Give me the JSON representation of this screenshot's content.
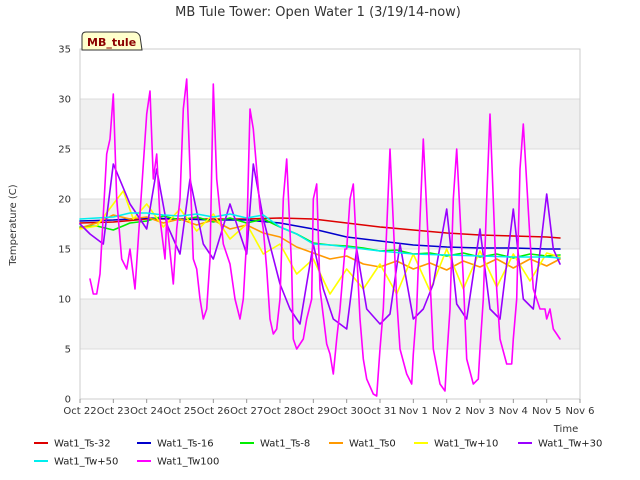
{
  "chart_data": {
    "type": "line",
    "title": "MB Tule Tower: Open Water 1 (3/19/14-now)",
    "xlabel": "Time",
    "ylabel": "Temperature (C)",
    "ylim": [
      0,
      35
    ],
    "xlim": [
      0,
      15
    ],
    "yticks": [
      0,
      5,
      10,
      15,
      20,
      25,
      30,
      35
    ],
    "xticks": [
      "Oct 22",
      "Oct 23",
      "Oct 24",
      "Oct 25",
      "Oct 26",
      "Oct 27",
      "Oct 28",
      "Oct 29",
      "Oct 30",
      "Oct 31",
      "Nov 1",
      "Nov 2",
      "Nov 3",
      "Nov 4",
      "Nov 5",
      "Nov 6"
    ],
    "station_label": "MB_tule",
    "grid": "horizontal bands",
    "legend_position": "bottom",
    "series": [
      {
        "name": "Wat1_Ts-32",
        "color": "#dd0000",
        "x": [
          0,
          1,
          2,
          3,
          4,
          5,
          6,
          7,
          8,
          9,
          10,
          11,
          12,
          13,
          14,
          14.4
        ],
        "y": [
          17.6,
          17.7,
          18.0,
          18.0,
          18.0,
          18.0,
          18.1,
          18.0,
          17.6,
          17.2,
          16.9,
          16.6,
          16.4,
          16.3,
          16.2,
          16.1
        ]
      },
      {
        "name": "Wat1_Ts-16",
        "color": "#0000cc",
        "x": [
          0,
          1,
          2,
          3,
          4,
          5,
          6,
          7,
          8,
          9,
          10,
          11,
          12,
          13,
          14,
          14.4
        ],
        "y": [
          17.8,
          17.9,
          18.1,
          18.0,
          17.9,
          17.9,
          17.6,
          17.0,
          16.2,
          15.8,
          15.4,
          15.2,
          15.1,
          15.1,
          15.0,
          15.0
        ]
      },
      {
        "name": "Wat1_Ts-8",
        "color": "#00ee00",
        "x": [
          0,
          0.5,
          1,
          1.5,
          2,
          2.5,
          3,
          3.5,
          4,
          4.5,
          5,
          5.5,
          6,
          6.5,
          7,
          7.5,
          8,
          8.5,
          9,
          9.5,
          10,
          10.5,
          11,
          11.5,
          12,
          12.5,
          13,
          13.5,
          14,
          14.4
        ],
        "y": [
          17.2,
          17.3,
          16.9,
          17.6,
          17.8,
          18.3,
          17.9,
          18.2,
          17.7,
          18.1,
          17.6,
          18.0,
          17.2,
          16.5,
          15.6,
          15.4,
          15.3,
          15.1,
          14.8,
          14.9,
          14.5,
          14.6,
          14.3,
          14.6,
          14.2,
          14.5,
          14.1,
          14.5,
          14.3,
          14.4
        ]
      },
      {
        "name": "Wat1_Ts0",
        "color": "#ff9900",
        "x": [
          0,
          0.5,
          1,
          1.5,
          2,
          2.5,
          3,
          3.5,
          4,
          4.5,
          5,
          5.5,
          6,
          6.5,
          7,
          7.5,
          8,
          8.5,
          9,
          9.5,
          10,
          10.5,
          11,
          11.5,
          12,
          12.5,
          13,
          13.5,
          14,
          14.4
        ],
        "y": [
          17.1,
          17.6,
          18.4,
          18.0,
          18.2,
          17.6,
          18.0,
          17.4,
          17.9,
          17.0,
          17.4,
          16.6,
          16.2,
          15.2,
          14.6,
          14.0,
          14.3,
          13.5,
          13.2,
          13.8,
          13.0,
          13.6,
          12.9,
          13.8,
          13.2,
          14.0,
          13.1,
          14.0,
          13.3,
          14.0
        ]
      },
      {
        "name": "Wat1_Tw+10",
        "color": "#ffff00",
        "x": [
          0,
          0.5,
          1,
          1.3,
          1.6,
          2,
          2.5,
          3,
          3.5,
          4,
          4.5,
          5,
          5.5,
          6,
          6.5,
          7,
          7.5,
          8,
          8.5,
          9,
          9.5,
          10,
          10.5,
          11,
          11.5,
          12,
          12.5,
          13,
          13.5,
          14,
          14.4
        ],
        "y": [
          17.0,
          17.3,
          19.5,
          20.8,
          18.0,
          19.5,
          17.2,
          19.0,
          16.8,
          18.5,
          16.0,
          17.5,
          14.5,
          15.5,
          12.5,
          14.0,
          10.5,
          13.0,
          11.0,
          13.5,
          10.5,
          14.5,
          10.8,
          15.0,
          11.0,
          14.8,
          11.2,
          14.5,
          11.8,
          14.6,
          14.2
        ]
      },
      {
        "name": "Wat1_Tw+30",
        "color": "#9900ff",
        "x": [
          0,
          0.3,
          0.7,
          1,
          1.5,
          2,
          2.3,
          2.6,
          3,
          3.3,
          3.7,
          4,
          4.5,
          5,
          5.2,
          5.5,
          6,
          6.3,
          6.6,
          7,
          7.3,
          7.6,
          8,
          8.3,
          8.6,
          9,
          9.3,
          9.6,
          10,
          10.3,
          10.6,
          11,
          11.3,
          11.6,
          12,
          12.3,
          12.6,
          13,
          13.3,
          13.6,
          14,
          14.2,
          14.4
        ],
        "y": [
          17.5,
          16.5,
          15.5,
          23.5,
          19.5,
          17.0,
          23.0,
          17.5,
          14.5,
          22.0,
          15.5,
          14.0,
          19.5,
          14.5,
          23.5,
          18.0,
          11.5,
          9.0,
          7.5,
          15.5,
          11.0,
          8.0,
          7.0,
          15.0,
          9.0,
          7.5,
          8.5,
          15.5,
          8.0,
          9.0,
          11.5,
          19.0,
          9.5,
          8.0,
          17.0,
          9.0,
          8.0,
          19.0,
          10.0,
          9.0,
          20.5,
          15.0,
          13.5
        ]
      },
      {
        "name": "Wat1_Tw+50",
        "color": "#00eeee",
        "x": [
          0,
          1,
          1.5,
          2,
          2.5,
          3,
          3.5,
          4,
          4.5,
          5,
          5.5,
          6,
          6.5,
          7,
          7.5,
          8,
          8.5,
          9,
          10,
          11,
          12,
          13,
          14,
          14.4
        ],
        "y": [
          18.0,
          18.2,
          18.6,
          18.6,
          18.4,
          18.3,
          18.5,
          18.2,
          18.5,
          18.1,
          18.4,
          17.2,
          16.5,
          15.5,
          15.4,
          15.2,
          15.0,
          14.8,
          14.5,
          14.4,
          14.3,
          14.2,
          14.2,
          14.1
        ]
      },
      {
        "name": "Wat1_Tw100",
        "color": "#ff00ff",
        "x": [
          0.3,
          0.4,
          0.5,
          0.6,
          0.8,
          0.9,
          1.0,
          1.1,
          1.25,
          1.4,
          1.5,
          1.65,
          1.75,
          2.0,
          2.1,
          2.2,
          2.3,
          2.4,
          2.55,
          2.6,
          2.8,
          2.9,
          3.0,
          3.1,
          3.2,
          3.4,
          3.5,
          3.6,
          3.7,
          3.8,
          3.9,
          4.0,
          4.1,
          4.3,
          4.5,
          4.65,
          4.8,
          4.9,
          5.0,
          5.1,
          5.2,
          5.4,
          5.5,
          5.6,
          5.7,
          5.8,
          5.9,
          6.0,
          6.1,
          6.2,
          6.35,
          6.4,
          6.5,
          6.7,
          6.8,
          6.95,
          7.0,
          7.1,
          7.2,
          7.4,
          7.5,
          7.6,
          7.7,
          7.8,
          7.95,
          8.0,
          8.1,
          8.2,
          8.4,
          8.5,
          8.6,
          8.8,
          8.9,
          9.0,
          9.1,
          9.2,
          9.3,
          9.5,
          9.6,
          9.8,
          9.95,
          10.0,
          10.1,
          10.2,
          10.3,
          10.5,
          10.6,
          10.8,
          10.95,
          11.0,
          11.1,
          11.2,
          11.3,
          11.5,
          11.6,
          11.8,
          11.95,
          12.0,
          12.1,
          12.2,
          12.3,
          12.5,
          12.6,
          12.8,
          12.95,
          13.0,
          13.1,
          13.2,
          13.3,
          13.5,
          13.6,
          13.8,
          13.95,
          14.0,
          14.1,
          14.2,
          14.3,
          14.4
        ],
        "y": [
          12.0,
          10.5,
          10.5,
          12.5,
          24.5,
          26.0,
          30.5,
          20.0,
          14.0,
          13.0,
          15.0,
          11.0,
          16.0,
          28.5,
          30.8,
          22.0,
          24.5,
          18.0,
          14.0,
          18.0,
          11.5,
          17.0,
          20.0,
          29.0,
          32.0,
          14.0,
          13.0,
          10.0,
          8.0,
          9.0,
          14.0,
          31.5,
          22.0,
          15.5,
          13.5,
          10.0,
          8.0,
          10.0,
          16.0,
          29.0,
          27.0,
          19.0,
          17.0,
          13.0,
          8.0,
          6.5,
          7.0,
          10.0,
          20.0,
          24.0,
          13.0,
          6.0,
          5.0,
          6.0,
          8.0,
          10.0,
          20.0,
          21.5,
          11.0,
          5.5,
          4.5,
          2.5,
          6.0,
          9.0,
          15.0,
          15.0,
          20.0,
          21.5,
          8.0,
          4.0,
          2.0,
          0.5,
          0.3,
          5.0,
          9.0,
          17.0,
          25.0,
          10.0,
          5.0,
          2.5,
          1.5,
          4.5,
          9.0,
          18.0,
          26.0,
          12.0,
          5.0,
          1.5,
          0.8,
          4.0,
          9.0,
          20.0,
          25.0,
          12.0,
          4.0,
          1.5,
          2.0,
          5.0,
          10.0,
          20.0,
          28.5,
          11.0,
          6.0,
          3.5,
          3.5,
          6.0,
          10.0,
          23.0,
          27.5,
          16.0,
          11.0,
          9.0,
          9.0,
          8.0,
          9.0,
          7.0,
          6.5,
          6.0
        ]
      }
    ]
  }
}
